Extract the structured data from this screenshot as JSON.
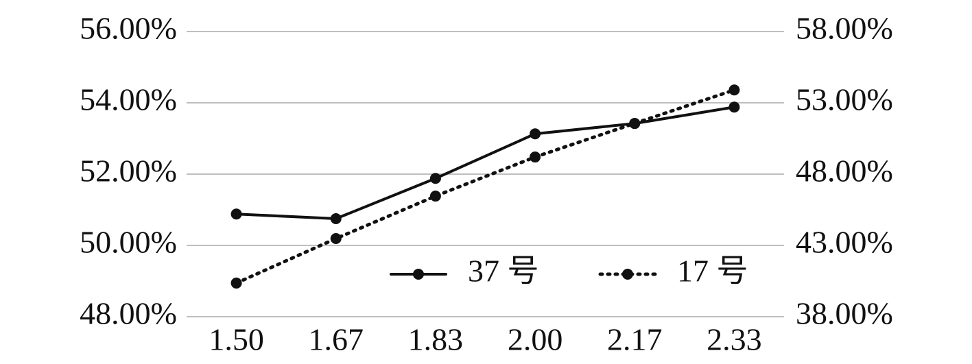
{
  "chart_data": {
    "type": "line",
    "categories": [
      "1.50",
      "1.67",
      "1.83",
      "2.00",
      "2.17",
      "2.33"
    ],
    "series": [
      {
        "name": "37 号",
        "color": "#111111",
        "dash": "solid",
        "values": [
          50.88,
          50.75,
          51.88,
          53.13,
          53.42,
          53.88
        ]
      },
      {
        "name": "17 号",
        "color": "#111111",
        "dash": "dotted",
        "axis": "y2",
        "values": [
          40.36,
          43.48,
          46.46,
          49.2,
          51.56,
          53.9
        ]
      }
    ],
    "ylim": [
      48,
      56
    ],
    "yticks": [
      {
        "value": 48,
        "label": "48.00%"
      },
      {
        "value": 50,
        "label": "50.00%"
      },
      {
        "value": 52,
        "label": "52.00%"
      },
      {
        "value": 54,
        "label": "54.00%"
      },
      {
        "value": 56,
        "label": "56.00%"
      }
    ],
    "y2lim": [
      38,
      58
    ],
    "y2ticks": [
      {
        "value": 38,
        "label": "38.00%"
      },
      {
        "value": 43,
        "label": "43.00%"
      },
      {
        "value": 48,
        "label": "48.00%"
      },
      {
        "value": 53,
        "label": "53.00%"
      },
      {
        "value": 58,
        "label": "58.00%"
      }
    ],
    "grid": true,
    "legend": "lower-right"
  }
}
